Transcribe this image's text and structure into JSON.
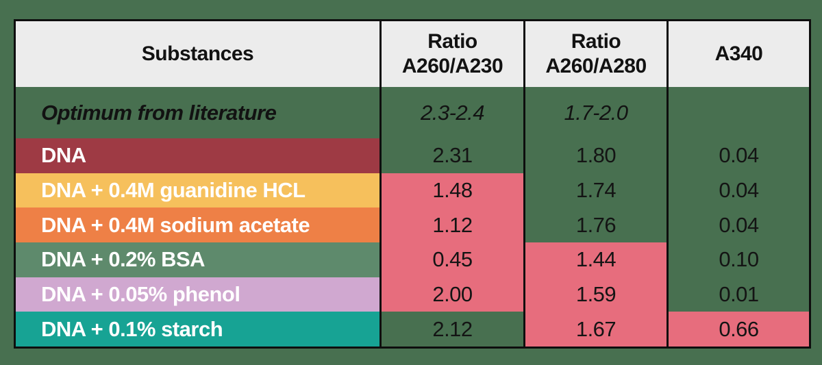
{
  "colors": {
    "page_bg": "#487050",
    "header_bg": "#ececec",
    "border_black": "#0e0e0e",
    "flag_pink": "#e76d7d",
    "ok_cell_green": "#487050",
    "label_text": "#ffffff",
    "value_text": "#141414"
  },
  "table": {
    "header": {
      "substances": "Substances",
      "ratio_230_line1": "Ratio",
      "ratio_230_line2": "A260/A230",
      "ratio_280_line1": "Ratio",
      "ratio_280_line2": "A260/A280",
      "a340": "A340"
    },
    "optimum": {
      "label": "Optimum from literature",
      "a260_230": "2.3-2.4",
      "a260_280": "1.7-2.0",
      "a340": ""
    },
    "rows": [
      {
        "label": "DNA",
        "color": "#9e3a44",
        "a260_230": "2.31",
        "a260_280": "1.80",
        "a340": "0.04",
        "flags": {
          "a260_230": false,
          "a260_280": false,
          "a340": false
        }
      },
      {
        "label": "DNA + 0.4M guanidine HCL",
        "color": "#f6c05c",
        "a260_230": "1.48",
        "a260_280": "1.74",
        "a340": "0.04",
        "flags": {
          "a260_230": true,
          "a260_280": false,
          "a340": false
        }
      },
      {
        "label": "DNA + 0.4M sodium acetate",
        "color": "#ee8046",
        "a260_230": "1.12",
        "a260_280": "1.76",
        "a340": "0.04",
        "flags": {
          "a260_230": true,
          "a260_280": false,
          "a340": false
        }
      },
      {
        "label": "DNA + 0.2% BSA",
        "color": "#5e8a6c",
        "a260_230": "0.45",
        "a260_280": "1.44",
        "a340": "0.10",
        "flags": {
          "a260_230": true,
          "a260_280": true,
          "a340": false
        }
      },
      {
        "label": "DNA + 0.05% phenol",
        "color": "#d0a8d0",
        "a260_230": "2.00",
        "a260_280": "1.59",
        "a340": "0.01",
        "flags": {
          "a260_230": true,
          "a260_280": true,
          "a340": false
        }
      },
      {
        "label": "DNA + 0.1% starch",
        "color": "#17a394",
        "a260_230": "2.12",
        "a260_280": "1.67",
        "a340": "0.66",
        "flags": {
          "a260_230": false,
          "a260_280": true,
          "a340": true
        }
      }
    ]
  },
  "chart_data": {
    "type": "table",
    "title": "",
    "columns": [
      "Substances",
      "Ratio A260/A230",
      "Ratio A260/A280",
      "A340"
    ],
    "rows": [
      [
        "Optimum from literature",
        "2.3-2.4",
        "1.7-2.0",
        ""
      ],
      [
        "DNA",
        "2.31",
        "1.80",
        "0.04"
      ],
      [
        "DNA + 0.4M guanidine HCL",
        "1.48",
        "1.74",
        "0.04"
      ],
      [
        "DNA + 0.4M sodium acetate",
        "1.12",
        "1.76",
        "0.04"
      ],
      [
        "DNA + 0.2% BSA",
        "0.45",
        "1.44",
        "0.10"
      ],
      [
        "DNA + 0.05% phenol",
        "2.00",
        "1.59",
        "0.01"
      ],
      [
        "DNA + 0.1% starch",
        "2.12",
        "1.67",
        "0.66"
      ]
    ],
    "highlighted_cells_out_of_range": [
      {
        "row": "DNA + 0.4M guanidine HCL",
        "column": "Ratio A260/A230",
        "value": 1.48
      },
      {
        "row": "DNA + 0.4M sodium acetate",
        "column": "Ratio A260/A230",
        "value": 1.12
      },
      {
        "row": "DNA + 0.2% BSA",
        "column": "Ratio A260/A230",
        "value": 0.45
      },
      {
        "row": "DNA + 0.2% BSA",
        "column": "Ratio A260/A280",
        "value": 1.44
      },
      {
        "row": "DNA + 0.05% phenol",
        "column": "Ratio A260/A230",
        "value": 2.0
      },
      {
        "row": "DNA + 0.05% phenol",
        "column": "Ratio A260/A280",
        "value": 1.59
      },
      {
        "row": "DNA + 0.1% starch",
        "column": "Ratio A260/A280",
        "value": 1.67
      },
      {
        "row": "DNA + 0.1% starch",
        "column": "A340",
        "value": 0.66
      }
    ],
    "layout_hints": {
      "highlight_color_meaning": "pink = outside optimum range",
      "row_label_colors": [
        "#9e3a44",
        "#f6c05c",
        "#ee8046",
        "#5e8a6c",
        "#d0a8d0",
        "#17a394"
      ],
      "background": "#487050"
    }
  }
}
